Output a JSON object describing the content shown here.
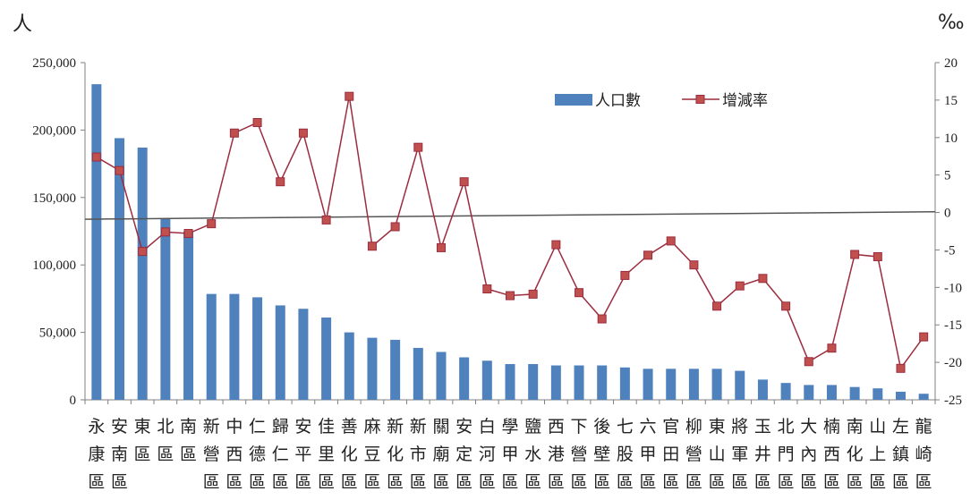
{
  "chart_data": {
    "type": "bar",
    "title": "",
    "categories": [
      "永康區",
      "安南區",
      "東區",
      "北區",
      "南區",
      "新營區",
      "中西區",
      "仁德區",
      "歸仁區",
      "安平區",
      "佳里區",
      "善化區",
      "麻豆區",
      "新化區",
      "新市區",
      "關廟區",
      "安定區",
      "白河區",
      "學甲區",
      "鹽水區",
      "西港區",
      "下營區",
      "後壁區",
      "七股區",
      "六甲區",
      "官田區",
      "柳營區",
      "東山區",
      "將軍區",
      "玉井區",
      "北門區",
      "大內區",
      "楠西區",
      "南化區",
      "山上區",
      "左鎮區",
      "龍崎區"
    ],
    "y_left_label": "人",
    "y_right_label": "‰",
    "y_left_ticks": [
      "0",
      "50,000",
      "100,000",
      "150,000",
      "200,000",
      "250,000"
    ],
    "y_left_range": [
      0,
      250000
    ],
    "y_right_ticks": [
      "-25",
      "-20",
      "-15",
      "-10",
      "-5",
      "0",
      "5",
      "10",
      "15",
      "20"
    ],
    "y_right_range": [
      -25,
      20
    ],
    "series": [
      {
        "name": "人口數",
        "kind": "bar",
        "axis": "left",
        "color": "#4f81bd",
        "values": [
          234000,
          194000,
          187000,
          134000,
          125000,
          78500,
          78500,
          76000,
          70000,
          67500,
          61000,
          50000,
          46000,
          44500,
          38500,
          35500,
          31500,
          29000,
          26500,
          26500,
          25500,
          25500,
          25500,
          24000,
          23000,
          23000,
          23000,
          23000,
          21500,
          15000,
          12500,
          11000,
          11000,
          9500,
          8500,
          6000,
          4500
        ]
      },
      {
        "name": "增減率",
        "kind": "line",
        "axis": "right",
        "color": "#9b2d3f",
        "marker_fill": "#c0504d",
        "values": [
          7.4,
          5.6,
          -5.2,
          -2.6,
          -2.8,
          -1.5,
          10.6,
          12.0,
          4.1,
          10.6,
          -1.0,
          15.5,
          -4.5,
          -1.9,
          8.7,
          -4.7,
          4.1,
          -10.2,
          -11.1,
          -10.9,
          -4.3,
          -10.7,
          -14.2,
          -8.4,
          -5.7,
          -3.8,
          -7.0,
          -12.5,
          -9.8,
          -8.8,
          -12.5,
          -19.9,
          -18.1,
          -5.6,
          -5.9,
          -20.8,
          -16.6
        ]
      }
    ],
    "trendline": {
      "axis": "right",
      "start": -0.9,
      "end": 0.1,
      "color": "#555555"
    },
    "legend": {
      "position": "top-right-inside"
    },
    "grid": false
  }
}
